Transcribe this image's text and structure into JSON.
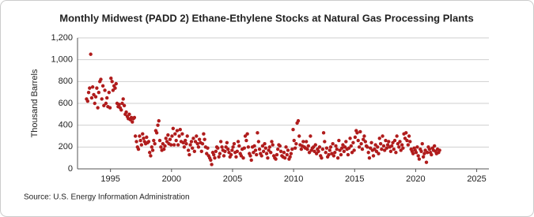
{
  "chart_data": {
    "type": "scatter",
    "title": "Monthly Midwest (PADD 2) Ethane-Ethylene Stocks at Natural Gas Processing Plants",
    "y_label": "Thousand Barrels",
    "source": "Source: U.S. Energy Information Administration",
    "color": "#b01c1c",
    "grid": true,
    "xlim": [
      1992.3,
      2026
    ],
    "xticks": [
      1995,
      2000,
      2005,
      2010,
      2015,
      2020,
      2025
    ],
    "ylim": [
      0,
      1200
    ],
    "yticks": [
      0,
      200,
      400,
      600,
      800,
      {
        "value": 1000,
        "label": "1,000"
      },
      {
        "value": 1200,
        "label": "1,200"
      }
    ],
    "x": [
      1993.04,
      1993.13,
      1993.21,
      1993.29,
      1993.38,
      1993.46,
      1993.54,
      1993.63,
      1993.71,
      1993.79,
      1993.88,
      1993.96,
      1994.04,
      1994.13,
      1994.21,
      1994.29,
      1994.38,
      1994.46,
      1994.54,
      1994.63,
      1994.71,
      1994.79,
      1994.88,
      1994.96,
      1995.04,
      1995.13,
      1995.21,
      1995.29,
      1995.38,
      1995.46,
      1995.54,
      1995.63,
      1995.71,
      1995.79,
      1995.88,
      1995.96,
      1996.04,
      1996.13,
      1996.21,
      1996.29,
      1996.38,
      1996.46,
      1996.54,
      1996.63,
      1996.71,
      1996.79,
      1996.88,
      1996.96,
      1997.04,
      1997.13,
      1997.21,
      1997.29,
      1997.38,
      1997.46,
      1997.54,
      1997.63,
      1997.71,
      1997.79,
      1997.88,
      1997.96,
      1998.04,
      1998.13,
      1998.21,
      1998.29,
      1998.38,
      1998.46,
      1998.54,
      1998.63,
      1998.71,
      1998.79,
      1998.88,
      1998.96,
      1999.04,
      1999.13,
      1999.21,
      1999.29,
      1999.38,
      1999.46,
      1999.54,
      1999.63,
      1999.71,
      1999.79,
      1999.88,
      1999.96,
      2000.04,
      2000.13,
      2000.21,
      2000.29,
      2000.38,
      2000.46,
      2000.54,
      2000.63,
      2000.71,
      2000.79,
      2000.88,
      2000.96,
      2001.04,
      2001.13,
      2001.21,
      2001.29,
      2001.38,
      2001.46,
      2001.54,
      2001.63,
      2001.71,
      2001.79,
      2001.88,
      2001.96,
      2002.04,
      2002.13,
      2002.21,
      2002.29,
      2002.38,
      2002.46,
      2002.54,
      2002.63,
      2002.71,
      2002.79,
      2002.88,
      2002.96,
      2003.04,
      2003.13,
      2003.21,
      2003.29,
      2003.38,
      2003.46,
      2003.54,
      2003.63,
      2003.71,
      2003.79,
      2003.88,
      2003.96,
      2004.04,
      2004.13,
      2004.21,
      2004.29,
      2004.38,
      2004.46,
      2004.54,
      2004.63,
      2004.71,
      2004.79,
      2004.88,
      2004.96,
      2005.04,
      2005.13,
      2005.21,
      2005.29,
      2005.38,
      2005.46,
      2005.54,
      2005.63,
      2005.71,
      2005.79,
      2005.88,
      2005.96,
      2006.04,
      2006.13,
      2006.21,
      2006.29,
      2006.38,
      2006.46,
      2006.54,
      2006.63,
      2006.71,
      2006.79,
      2006.88,
      2006.96,
      2007.04,
      2007.13,
      2007.21,
      2007.29,
      2007.38,
      2007.46,
      2007.54,
      2007.63,
      2007.71,
      2007.79,
      2007.88,
      2007.96,
      2008.04,
      2008.13,
      2008.21,
      2008.29,
      2008.38,
      2008.46,
      2008.54,
      2008.63,
      2008.71,
      2008.79,
      2008.88,
      2008.96,
      2009.04,
      2009.13,
      2009.21,
      2009.29,
      2009.38,
      2009.46,
      2009.54,
      2009.63,
      2009.71,
      2009.79,
      2009.88,
      2009.96,
      2010.04,
      2010.13,
      2010.21,
      2010.29,
      2010.38,
      2010.46,
      2010.54,
      2010.63,
      2010.71,
      2010.79,
      2010.88,
      2010.96,
      2011.04,
      2011.13,
      2011.21,
      2011.29,
      2011.38,
      2011.46,
      2011.54,
      2011.63,
      2011.71,
      2011.79,
      2011.88,
      2011.96,
      2012.04,
      2012.13,
      2012.21,
      2012.29,
      2012.38,
      2012.46,
      2012.54,
      2012.63,
      2012.71,
      2012.79,
      2012.88,
      2012.96,
      2013.04,
      2013.13,
      2013.21,
      2013.29,
      2013.38,
      2013.46,
      2013.54,
      2013.63,
      2013.71,
      2013.79,
      2013.88,
      2013.96,
      2014.04,
      2014.13,
      2014.21,
      2014.29,
      2014.38,
      2014.46,
      2014.54,
      2014.63,
      2014.71,
      2014.79,
      2014.88,
      2014.96,
      2015.04,
      2015.13,
      2015.21,
      2015.29,
      2015.38,
      2015.46,
      2015.54,
      2015.63,
      2015.71,
      2015.79,
      2015.88,
      2015.96,
      2016.04,
      2016.13,
      2016.21,
      2016.29,
      2016.38,
      2016.46,
      2016.54,
      2016.63,
      2016.71,
      2016.79,
      2016.88,
      2016.96,
      2017.04,
      2017.13,
      2017.21,
      2017.29,
      2017.38,
      2017.46,
      2017.54,
      2017.63,
      2017.71,
      2017.79,
      2017.88,
      2017.96,
      2018.04,
      2018.13,
      2018.21,
      2018.29,
      2018.38,
      2018.46,
      2018.54,
      2018.63,
      2018.71,
      2018.79,
      2018.88,
      2018.96,
      2019.04,
      2019.13,
      2019.21,
      2019.29,
      2019.38,
      2019.46,
      2019.54,
      2019.63,
      2019.71,
      2019.79,
      2019.88,
      2019.96,
      2020.04,
      2020.13,
      2020.21,
      2020.29,
      2020.38,
      2020.46,
      2020.54,
      2020.63,
      2020.71,
      2020.79,
      2020.88,
      2020.96,
      2021.04,
      2021.13,
      2021.21,
      2021.29,
      2021.38,
      2021.46,
      2021.54,
      2021.63,
      2021.71,
      2021.79,
      2021.88,
      2021.96
    ],
    "values": [
      640,
      620,
      700,
      740,
      1050,
      650,
      750,
      680,
      600,
      660,
      740,
      560,
      700,
      800,
      820,
      640,
      760,
      580,
      720,
      600,
      650,
      570,
      700,
      560,
      830,
      800,
      720,
      760,
      740,
      780,
      600,
      570,
      590,
      560,
      540,
      600,
      640,
      580,
      500,
      520,
      480,
      460,
      500,
      450,
      470,
      430,
      460,
      470,
      300,
      250,
      200,
      180,
      300,
      260,
      220,
      320,
      280,
      250,
      230,
      290,
      240,
      250,
      150,
      120,
      200,
      170,
      260,
      230,
      350,
      330,
      400,
      440,
      260,
      200,
      170,
      230,
      180,
      210,
      280,
      250,
      310,
      230,
      270,
      220,
      300,
      370,
      220,
      320,
      260,
      350,
      220,
      300,
      360,
      250,
      320,
      240,
      200,
      260,
      230,
      300,
      170,
      130,
      220,
      250,
      190,
      280,
      160,
      250,
      300,
      230,
      200,
      270,
      240,
      160,
      230,
      320,
      270,
      200,
      140,
      190,
      120,
      100,
      80,
      40,
      150,
      130,
      100,
      160,
      200,
      190,
      110,
      140,
      250,
      200,
      170,
      120,
      160,
      200,
      240,
      180,
      150,
      110,
      130,
      170,
      200,
      230,
      150,
      110,
      160,
      250,
      210,
      140,
      120,
      180,
      100,
      190,
      300,
      260,
      320,
      200,
      140,
      120,
      80,
      200,
      150,
      210,
      170,
      130,
      330,
      250,
      180,
      140,
      120,
      210,
      160,
      230,
      190,
      140,
      100,
      170,
      200,
      150,
      250,
      220,
      120,
      100,
      90,
      130,
      180,
      220,
      210,
      160,
      120,
      110,
      150,
      100,
      200,
      130,
      170,
      90,
      110,
      140,
      180,
      360,
      260,
      190,
      230,
      420,
      440,
      300,
      220,
      180,
      210,
      250,
      200,
      190,
      250,
      180,
      210,
      150,
      300,
      170,
      190,
      200,
      160,
      220,
      140,
      180,
      160,
      200,
      120,
      100,
      180,
      330,
      250,
      150,
      190,
      110,
      130,
      170,
      200,
      140,
      230,
      120,
      150,
      210,
      180,
      100,
      260,
      170,
      130,
      190,
      220,
      160,
      200,
      250,
      180,
      130,
      190,
      280,
      210,
      150,
      240,
      170,
      290,
      350,
      330,
      260,
      200,
      340,
      230,
      180,
      270,
      300,
      250,
      210,
      200,
      150,
      100,
      190,
      240,
      170,
      120,
      180,
      220,
      160,
      200,
      140,
      280,
      230,
      180,
      300,
      210,
      170,
      260,
      190,
      220,
      250,
      200,
      160,
      210,
      240,
      180,
      260,
      150,
      300,
      230,
      200,
      250,
      170,
      220,
      190,
      320,
      280,
      330,
      260,
      220,
      300,
      250,
      180,
      160,
      140,
      190,
      170,
      150,
      200,
      120,
      90,
      180,
      160,
      230,
      110,
      140,
      170,
      60,
      150,
      200,
      180,
      150,
      130,
      190,
      170,
      210,
      160,
      140,
      180,
      150,
      170
    ]
  }
}
